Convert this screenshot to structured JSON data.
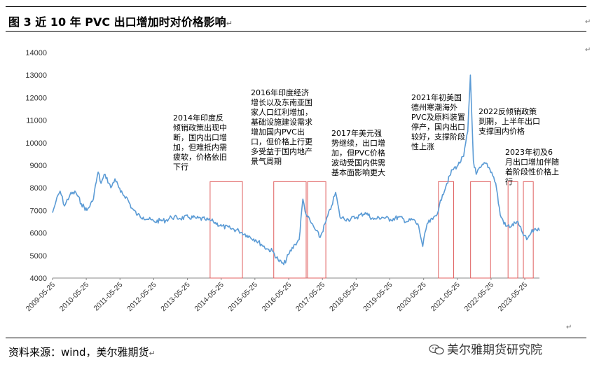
{
  "figure": {
    "title": "图 3    近 10 年 PVC 出口增加时对价格影响",
    "source": "资料来源：wind，美尔雅期货",
    "watermark": "美尔雅期货研究院"
  },
  "chart_data": {
    "type": "line",
    "title": "",
    "xlabel": "",
    "ylabel": "",
    "ylim": [
      4000,
      14000
    ],
    "yticks": [
      "4000",
      "5000",
      "6000",
      "7000",
      "8000",
      "9000",
      "10000",
      "11000",
      "12000",
      "13000",
      "14000"
    ],
    "xticks": [
      "2009-05-25",
      "2010-05-25",
      "2011-05-25",
      "2012-05-25",
      "2013-05-25",
      "2014-05-25",
      "2015-05-25",
      "2016-05-25",
      "2017-05-25",
      "2018-05-25",
      "2019-05-25",
      "2020-05-25",
      "2021-05-25",
      "2022-05-25",
      "2023-05-25"
    ],
    "x_range": [
      "2009-05-25",
      "2023-10-31"
    ],
    "color": "#5b9bd5",
    "series": [
      {
        "x": [
          "2009-05-25",
          "2009-07-01",
          "2009-08-15",
          "2009-10-01",
          "2009-12-01",
          "2010-02-01",
          "2010-04-01",
          "2010-06-01",
          "2010-08-01",
          "2010-10-01",
          "2010-11-01",
          "2010-12-15",
          "2011-02-15",
          "2011-04-01",
          "2011-06-01",
          "2011-08-01",
          "2011-10-01",
          "2011-12-01",
          "2012-02-01",
          "2012-04-01",
          "2012-06-01",
          "2012-08-01",
          "2012-10-01",
          "2012-12-01",
          "2013-03-01",
          "2013-06-01",
          "2013-09-01",
          "2013-12-01",
          "2014-03-01",
          "2014-06-01",
          "2014-09-01",
          "2014-12-01",
          "2015-03-01",
          "2015-06-01",
          "2015-08-01",
          "2015-10-01",
          "2015-12-01",
          "2016-02-01",
          "2016-04-01",
          "2016-06-01",
          "2016-08-01",
          "2016-09-15",
          "2016-10-25",
          "2016-12-01",
          "2017-01-15",
          "2017-03-01",
          "2017-05-01",
          "2017-07-01",
          "2017-09-01",
          "2017-10-15",
          "2017-12-01",
          "2018-03-01",
          "2018-06-01",
          "2018-09-01",
          "2018-12-01",
          "2019-03-01",
          "2019-06-01",
          "2019-09-01",
          "2019-12-01",
          "2020-02-01",
          "2020-04-01",
          "2020-05-15",
          "2020-07-01",
          "2020-09-01",
          "2020-11-01",
          "2020-12-15",
          "2021-02-01",
          "2021-04-01",
          "2021-06-01",
          "2021-08-01",
          "2021-09-15",
          "2021-10-13",
          "2021-11-15",
          "2021-12-15",
          "2022-02-01",
          "2022-04-01",
          "2022-06-01",
          "2022-07-15",
          "2022-09-01",
          "2022-11-01",
          "2023-01-01",
          "2023-03-01",
          "2023-05-01",
          "2023-06-15",
          "2023-08-01",
          "2023-09-15",
          "2023-10-31"
        ],
        "values": [
          6900,
          7400,
          7850,
          7200,
          7700,
          7800,
          7300,
          7000,
          7400,
          8700,
          8200,
          8600,
          8000,
          8400,
          7800,
          7600,
          7100,
          6800,
          6700,
          6600,
          6500,
          6550,
          6550,
          6700,
          6650,
          6700,
          6650,
          6600,
          6500,
          6300,
          6200,
          6100,
          5900,
          5700,
          5500,
          5300,
          5200,
          4800,
          4600,
          5100,
          5500,
          5700,
          7500,
          6800,
          6500,
          6200,
          5800,
          6500,
          7200,
          7800,
          6700,
          6600,
          6700,
          6900,
          6600,
          6700,
          6600,
          6700,
          6500,
          6600,
          6300,
          5400,
          6400,
          6600,
          7000,
          7700,
          8200,
          8800,
          9000,
          9400,
          10500,
          13000,
          9200,
          8600,
          8900,
          9100,
          8700,
          8200,
          6800,
          6300,
          6300,
          6500,
          6000,
          5700,
          6000,
          6200,
          6100
        ]
      }
    ],
    "highlights": [
      {
        "start": "2014-01-25",
        "end": "2015-01-10"
      },
      {
        "start": "2015-12-15",
        "end": "2016-11-30"
      },
      {
        "start": "2016-12-15",
        "end": "2017-07-01"
      },
      {
        "start": "2020-11-01",
        "end": "2021-04-15"
      },
      {
        "start": "2021-10-15",
        "end": "2022-05-20"
      },
      {
        "start": "2022-11-25",
        "end": "2023-03-10"
      },
      {
        "start": "2023-05-10",
        "end": "2023-08-25"
      }
    ],
    "annotations": [
      {
        "text": "2014年印度反倾销政策出现中断，国内出口增加，但难抵内需疲软，价格依旧下行"
      },
      {
        "text": "2016年印度经济增长以及东南亚国家人口红利增加，基础设施建设需求增加国内PVC出口，但价格上行更多受益于国内地产景气周期"
      },
      {
        "text": "2017年美元强势继续，出口增加，但PVC价格波动受国内供需基本面影响更大"
      },
      {
        "text": "2021年初美国德州寒潮海外PVC及原料装置停产，国内出口较好，支撑阶段性上涨"
      },
      {
        "text": "2022反倾销政策到期，上半年出口支撑国内价格"
      },
      {
        "text": "2023年初及6月出口增加伴随着阶段性价格上行"
      }
    ],
    "box_color": "#e06060"
  }
}
